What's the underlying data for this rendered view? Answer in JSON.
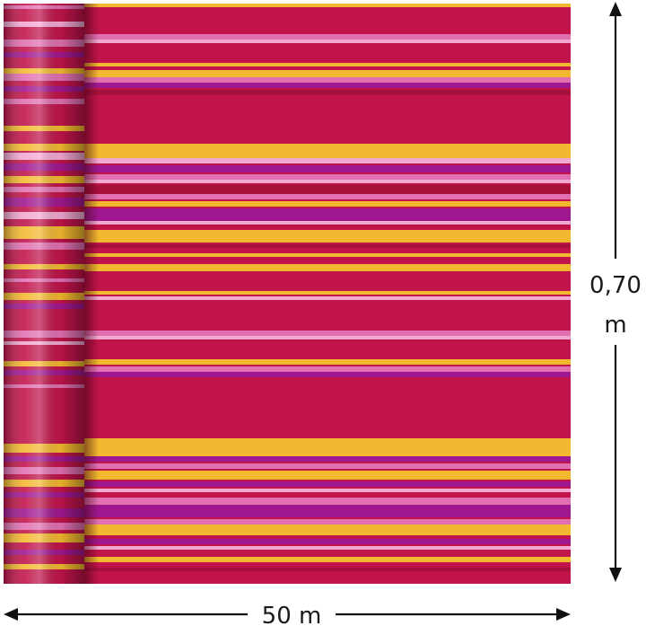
{
  "product": {
    "pattern": "horizontal-stripes",
    "colors": {
      "base": "#c0144a",
      "dark_red": "#a8103c",
      "yellow": "#f2b830",
      "pink": "#e070b0",
      "light_pink": "#f2a8d0",
      "magenta": "#a01890",
      "roll_shadow": "#6a0a24"
    }
  },
  "dimensions": {
    "width_label": "50 m",
    "height_value": "0,70",
    "height_unit": "m"
  },
  "icons": {
    "arrow_horizontal": "double-headed-arrow-horizontal",
    "arrow_vertical": "double-headed-arrow-vertical"
  }
}
